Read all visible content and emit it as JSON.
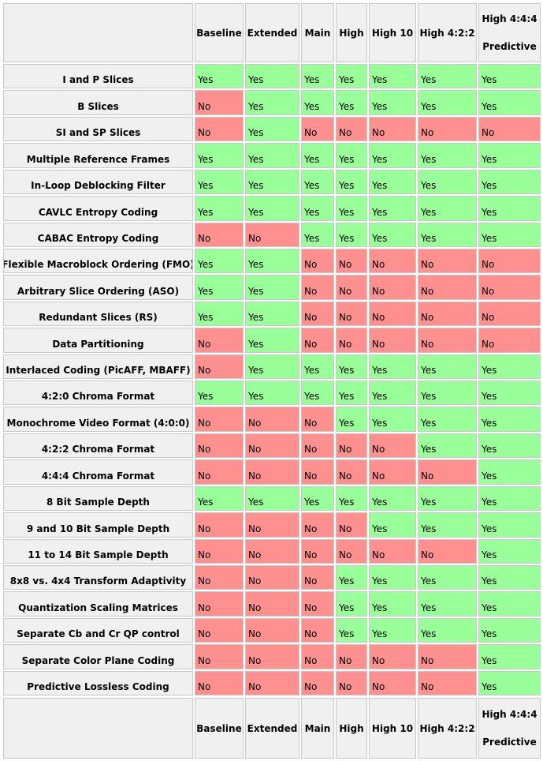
{
  "colors": {
    "yes": "#99ff99",
    "no": "#ff9090",
    "header": "#f0f0f0"
  },
  "columns": [
    "Baseline",
    "Extended",
    "Main",
    "High",
    "High 10",
    "High 4:2:2",
    "High 4:4:4 Predictive"
  ],
  "columns_split": {
    "top": [
      "Baseline",
      "Extended",
      "Main",
      "High",
      "High 10",
      "High 4:2:2",
      "High 4:4:4"
    ],
    "bottom": [
      "",
      "",
      "",
      "",
      "",
      "",
      "Predictive"
    ]
  },
  "rows": [
    {
      "label": "I and P Slices",
      "values": [
        "Yes",
        "Yes",
        "Yes",
        "Yes",
        "Yes",
        "Yes",
        "Yes"
      ]
    },
    {
      "label": "B Slices",
      "values": [
        "No",
        "Yes",
        "Yes",
        "Yes",
        "Yes",
        "Yes",
        "Yes"
      ]
    },
    {
      "label": "SI and SP Slices",
      "values": [
        "No",
        "Yes",
        "No",
        "No",
        "No",
        "No",
        "No"
      ]
    },
    {
      "label": "Multiple Reference Frames",
      "values": [
        "Yes",
        "Yes",
        "Yes",
        "Yes",
        "Yes",
        "Yes",
        "Yes"
      ]
    },
    {
      "label": "In-Loop Deblocking Filter",
      "values": [
        "Yes",
        "Yes",
        "Yes",
        "Yes",
        "Yes",
        "Yes",
        "Yes"
      ]
    },
    {
      "label": "CAVLC Entropy Coding",
      "values": [
        "Yes",
        "Yes",
        "Yes",
        "Yes",
        "Yes",
        "Yes",
        "Yes"
      ]
    },
    {
      "label": "CABAC Entropy Coding",
      "values": [
        "No",
        "No",
        "Yes",
        "Yes",
        "Yes",
        "Yes",
        "Yes"
      ]
    },
    {
      "label": "Flexible Macroblock Ordering (FMO)",
      "values": [
        "Yes",
        "Yes",
        "No",
        "No",
        "No",
        "No",
        "No"
      ]
    },
    {
      "label": "Arbitrary Slice Ordering (ASO)",
      "values": [
        "Yes",
        "Yes",
        "No",
        "No",
        "No",
        "No",
        "No"
      ]
    },
    {
      "label": "Redundant Slices (RS)",
      "values": [
        "Yes",
        "Yes",
        "No",
        "No",
        "No",
        "No",
        "No"
      ]
    },
    {
      "label": "Data Partitioning",
      "values": [
        "No",
        "Yes",
        "No",
        "No",
        "No",
        "No",
        "No"
      ]
    },
    {
      "label": "Interlaced Coding (PicAFF, MBAFF)",
      "values": [
        "No",
        "Yes",
        "Yes",
        "Yes",
        "Yes",
        "Yes",
        "Yes"
      ]
    },
    {
      "label": "4:2:0 Chroma Format",
      "values": [
        "Yes",
        "Yes",
        "Yes",
        "Yes",
        "Yes",
        "Yes",
        "Yes"
      ]
    },
    {
      "label": "Monochrome Video Format (4:0:0)",
      "values": [
        "No",
        "No",
        "No",
        "Yes",
        "Yes",
        "Yes",
        "Yes"
      ]
    },
    {
      "label": "4:2:2 Chroma Format",
      "values": [
        "No",
        "No",
        "No",
        "No",
        "No",
        "Yes",
        "Yes"
      ]
    },
    {
      "label": "4:4:4 Chroma Format",
      "values": [
        "No",
        "No",
        "No",
        "No",
        "No",
        "No",
        "Yes"
      ]
    },
    {
      "label": "8 Bit Sample Depth",
      "values": [
        "Yes",
        "Yes",
        "Yes",
        "Yes",
        "Yes",
        "Yes",
        "Yes"
      ]
    },
    {
      "label": "9 and 10 Bit Sample Depth",
      "values": [
        "No",
        "No",
        "No",
        "No",
        "Yes",
        "Yes",
        "Yes"
      ]
    },
    {
      "label": "11 to 14 Bit Sample Depth",
      "values": [
        "No",
        "No",
        "No",
        "No",
        "No",
        "No",
        "Yes"
      ]
    },
    {
      "label": "8x8 vs. 4x4 Transform Adaptivity",
      "values": [
        "No",
        "No",
        "No",
        "Yes",
        "Yes",
        "Yes",
        "Yes"
      ]
    },
    {
      "label": "Quantization Scaling Matrices",
      "values": [
        "No",
        "No",
        "No",
        "Yes",
        "Yes",
        "Yes",
        "Yes"
      ]
    },
    {
      "label": "Separate Cb and Cr QP control",
      "values": [
        "No",
        "No",
        "No",
        "Yes",
        "Yes",
        "Yes",
        "Yes"
      ]
    },
    {
      "label": "Separate Color Plane Coding",
      "values": [
        "No",
        "No",
        "No",
        "No",
        "No",
        "No",
        "Yes"
      ]
    },
    {
      "label": "Predictive Lossless Coding",
      "values": [
        "No",
        "No",
        "No",
        "No",
        "No",
        "No",
        "Yes"
      ]
    }
  ]
}
